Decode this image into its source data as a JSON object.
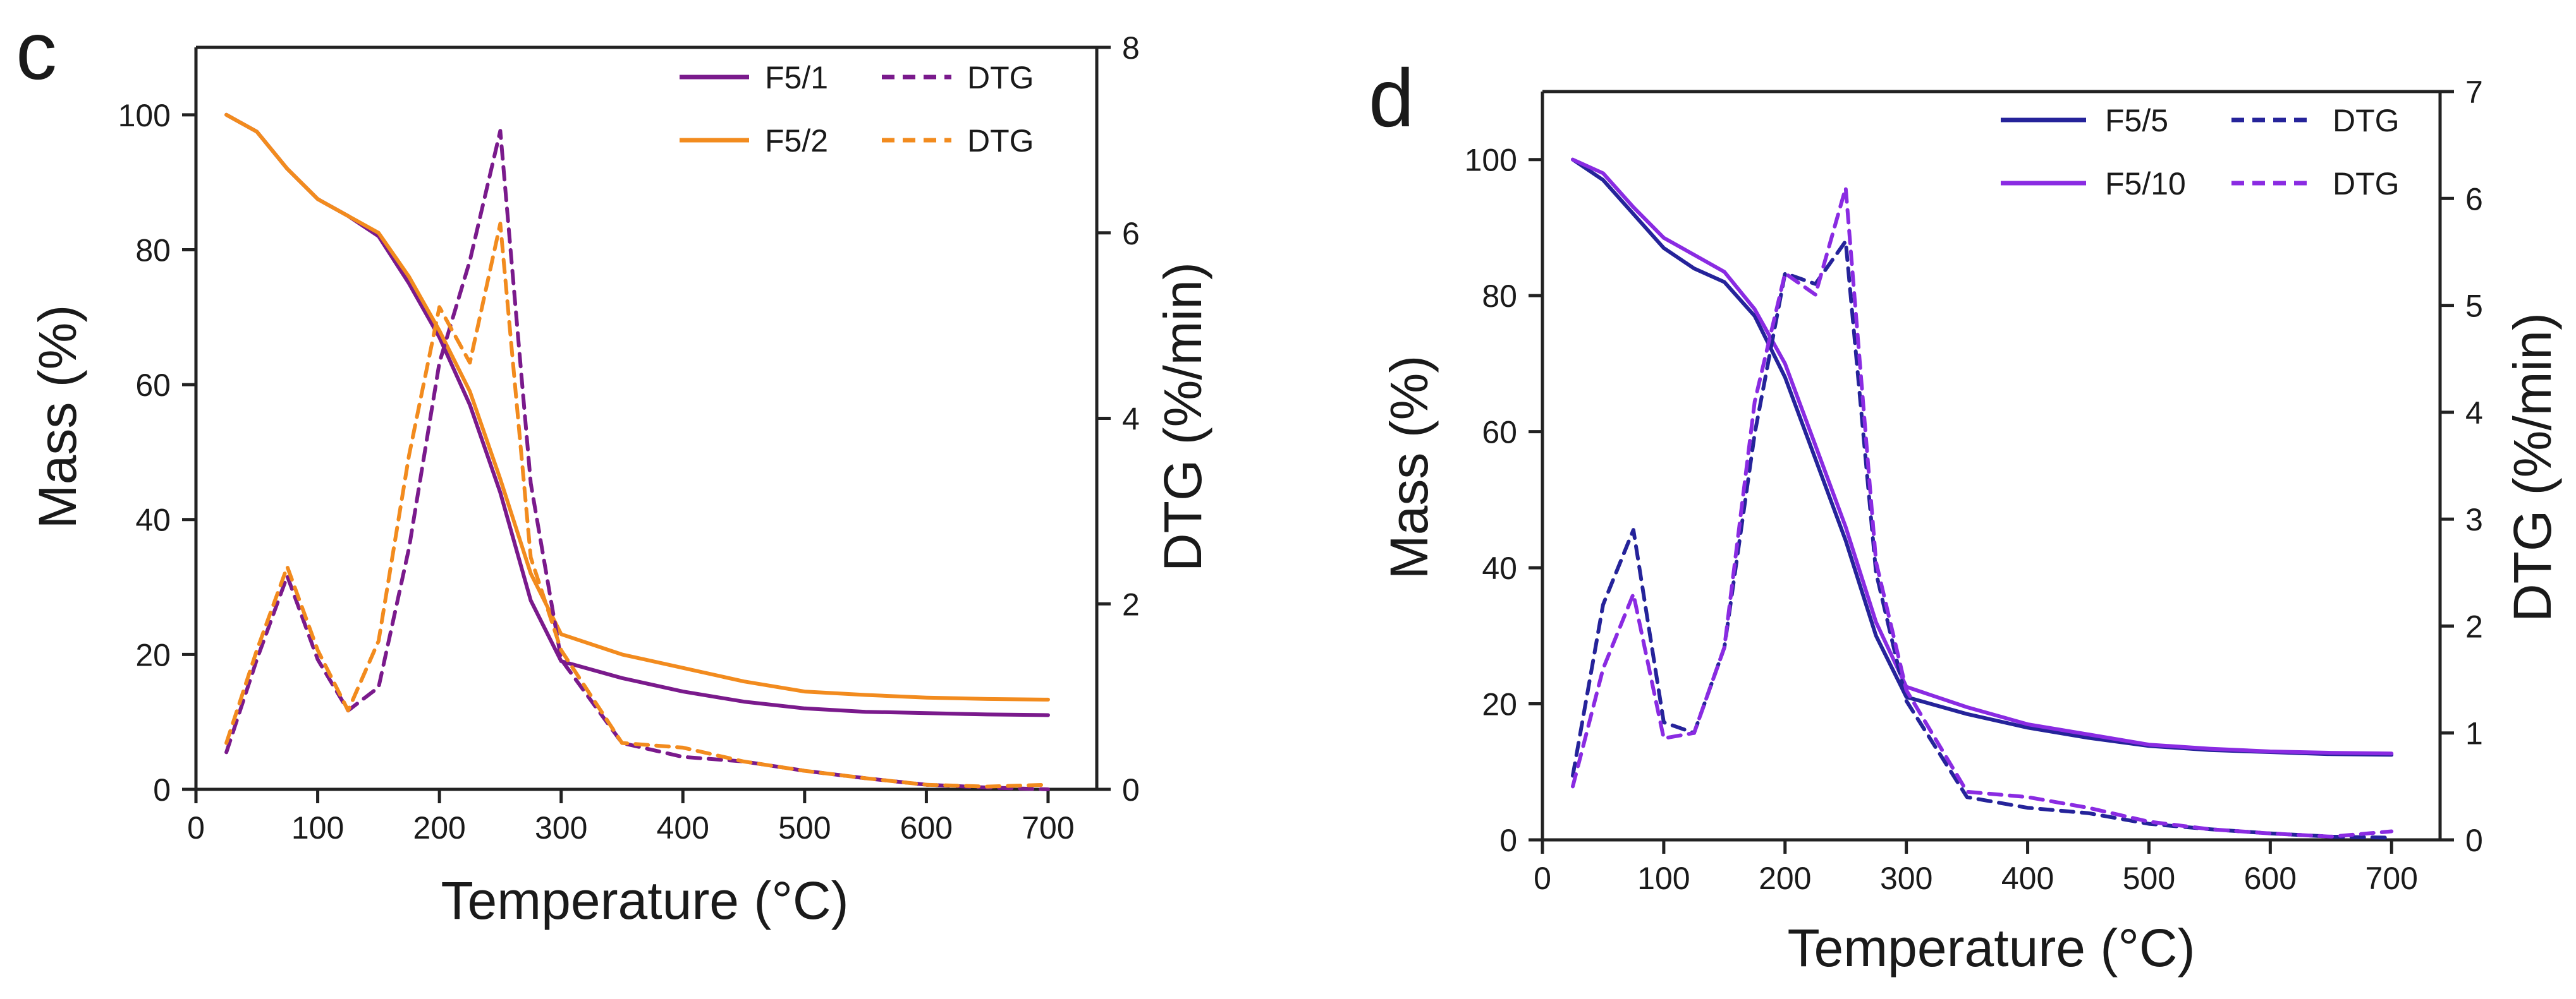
{
  "chart_data": [
    {
      "type": "line",
      "panel_label": "c",
      "xlabel": "Temperature (°C)",
      "ylabel": "Mass  (%)",
      "y2label": "DTG  (%/min)",
      "xlim": [
        0,
        740
      ],
      "ylim": [
        0,
        110
      ],
      "y2lim": [
        0,
        8
      ],
      "xticks": [
        0,
        100,
        200,
        300,
        400,
        500,
        600,
        700
      ],
      "yticks": [
        0,
        20,
        40,
        60,
        80,
        100
      ],
      "y2ticks": [
        0,
        2,
        4,
        6,
        8
      ],
      "legend_position": "top-right",
      "x": [
        25,
        50,
        75,
        100,
        125,
        150,
        175,
        200,
        225,
        250,
        275,
        300,
        350,
        400,
        450,
        500,
        550,
        600,
        650,
        700
      ],
      "series": [
        {
          "name": "F5/1",
          "axis": "left",
          "style": "solid",
          "color": "#7a1a8c",
          "values": [
            100,
            97.5,
            92,
            87.5,
            85,
            82,
            75,
            67,
            57,
            44,
            28,
            19,
            16.5,
            14.5,
            13,
            12,
            11.5,
            11.3,
            11.1,
            11.0
          ]
        },
        {
          "name": "F5/2",
          "axis": "left",
          "style": "solid",
          "color": "#f28b1e",
          "values": [
            100,
            97.5,
            92,
            87.5,
            85,
            82.5,
            76,
            68,
            59,
            46,
            32,
            23,
            20,
            18,
            16,
            14.5,
            14,
            13.6,
            13.4,
            13.3
          ]
        },
        {
          "name": "DTG",
          "legend_for": "F5/1",
          "axis": "right",
          "style": "dashed",
          "color": "#7a1a8c",
          "values": [
            0.4,
            1.4,
            2.3,
            1.4,
            0.85,
            1.1,
            2.6,
            4.6,
            5.7,
            7.1,
            3.3,
            1.4,
            0.5,
            0.35,
            0.3,
            0.2,
            0.12,
            0.05,
            0.02,
            0.0
          ]
        },
        {
          "name": "DTG",
          "legend_for": "F5/2",
          "axis": "right",
          "style": "dashed",
          "color": "#f28b1e",
          "values": [
            0.5,
            1.5,
            2.4,
            1.5,
            0.85,
            1.6,
            3.6,
            5.2,
            4.6,
            6.1,
            2.5,
            1.5,
            0.5,
            0.45,
            0.3,
            0.2,
            0.12,
            0.05,
            0.03,
            0.05
          ]
        }
      ]
    },
    {
      "type": "line",
      "panel_label": "d",
      "xlabel": "Temperature (°C)",
      "ylabel": "Mass  (%)",
      "y2label": "DTG  (%/min)",
      "xlim": [
        0,
        740
      ],
      "ylim": [
        0,
        110
      ],
      "y2lim": [
        0,
        7
      ],
      "xticks": [
        0,
        100,
        200,
        300,
        400,
        500,
        600,
        700
      ],
      "yticks": [
        0,
        20,
        40,
        60,
        80,
        100
      ],
      "y2ticks": [
        0,
        1,
        2,
        3,
        4,
        5,
        6,
        7
      ],
      "legend_position": "top-right",
      "x": [
        25,
        50,
        75,
        100,
        125,
        150,
        175,
        200,
        225,
        250,
        275,
        300,
        350,
        400,
        450,
        500,
        550,
        600,
        650,
        700
      ],
      "series": [
        {
          "name": "F5/5",
          "axis": "left",
          "style": "solid",
          "color": "#25239a",
          "values": [
            100,
            97,
            92,
            87,
            84,
            82,
            77,
            68,
            56,
            44,
            30,
            21,
            18.5,
            16.5,
            15,
            13.8,
            13.2,
            12.9,
            12.6,
            12.5
          ]
        },
        {
          "name": "F5/10",
          "axis": "left",
          "style": "solid",
          "color": "#8a2be2",
          "values": [
            100,
            98,
            93,
            88.5,
            86,
            83.5,
            78,
            70,
            58,
            46,
            32,
            22.5,
            19.5,
            17,
            15.5,
            14,
            13.4,
            13,
            12.8,
            12.7
          ]
        },
        {
          "name": "DTG",
          "legend_for": "F5/5",
          "axis": "right",
          "style": "dashed",
          "color": "#25239a",
          "values": [
            0.6,
            2.2,
            2.9,
            1.1,
            1.0,
            1.8,
            3.8,
            5.3,
            5.2,
            5.6,
            2.5,
            1.3,
            0.4,
            0.3,
            0.25,
            0.15,
            0.1,
            0.06,
            0.03,
            0.02
          ]
        },
        {
          "name": "DTG",
          "legend_for": "F5/10",
          "axis": "right",
          "style": "dashed",
          "color": "#8a2be2",
          "values": [
            0.5,
            1.6,
            2.3,
            0.95,
            1.0,
            1.8,
            4.1,
            5.3,
            5.1,
            6.1,
            2.6,
            1.4,
            0.45,
            0.4,
            0.3,
            0.17,
            0.1,
            0.06,
            0.03,
            0.08
          ]
        }
      ]
    }
  ]
}
